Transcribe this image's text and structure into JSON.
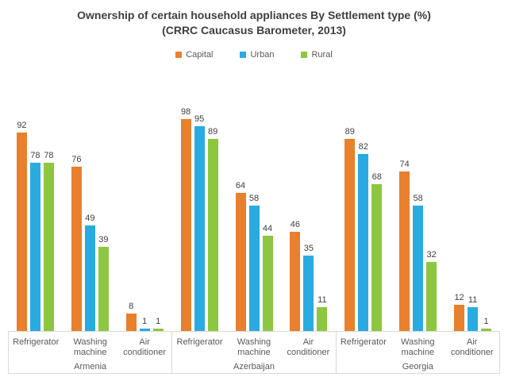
{
  "chart_data": {
    "type": "bar",
    "title": "Ownership of certain household appliances By Settlement type (%)",
    "subtitle": "(CRRC Caucasus Barometer, 2013)",
    "ylim": [
      0,
      100
    ],
    "grid": false,
    "legend_position": "top-center",
    "axis_box_color": "#d9d9d9",
    "text_color": "#595959",
    "value_label_color": "#404040",
    "series_names": [
      "Capital",
      "Urban",
      "Rural"
    ],
    "colors": {
      "Capital": "#e8802d",
      "Urban": "#29abe2",
      "Rural": "#8dc63f"
    },
    "categories": [
      "Refrigerator",
      "Washing machine",
      "Air conditioner"
    ],
    "groups": [
      {
        "label": "Armenia",
        "series": [
          {
            "name": "Capital",
            "values": [
              92,
              76,
              8
            ]
          },
          {
            "name": "Urban",
            "values": [
              78,
              49,
              1
            ]
          },
          {
            "name": "Rural",
            "values": [
              78,
              39,
              1
            ]
          }
        ]
      },
      {
        "label": "Azerbaijan",
        "series": [
          {
            "name": "Capital",
            "values": [
              98,
              64,
              46
            ]
          },
          {
            "name": "Urban",
            "values": [
              95,
              58,
              35
            ]
          },
          {
            "name": "Rural",
            "values": [
              89,
              44,
              11
            ]
          }
        ]
      },
      {
        "label": "Georgia",
        "series": [
          {
            "name": "Capital",
            "values": [
              89,
              74,
              12
            ]
          },
          {
            "name": "Urban",
            "values": [
              82,
              58,
              11
            ]
          },
          {
            "name": "Rural",
            "values": [
              68,
              32,
              1
            ]
          }
        ]
      }
    ]
  }
}
